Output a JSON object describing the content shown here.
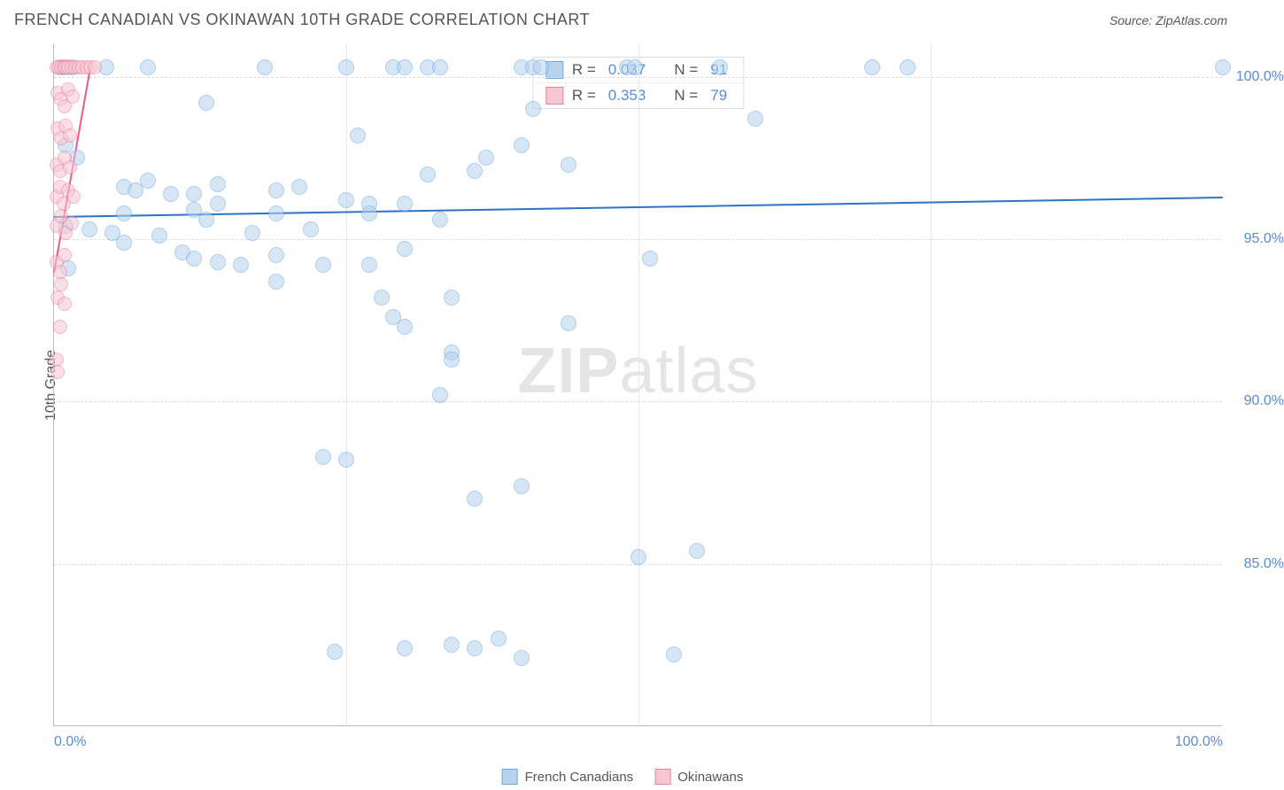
{
  "header": {
    "title": "FRENCH CANADIAN VS OKINAWAN 10TH GRADE CORRELATION CHART",
    "source": "Source: ZipAtlas.com"
  },
  "watermark": {
    "zip": "ZIP",
    "atlas": "atlas"
  },
  "chart": {
    "type": "scatter",
    "y_axis_title": "10th Grade",
    "xlim": [
      0,
      100
    ],
    "ylim": [
      80,
      101
    ],
    "xticks": [
      {
        "v": 0,
        "label": "0.0%",
        "align": "left"
      },
      {
        "v": 100,
        "label": "100.0%",
        "align": "right"
      }
    ],
    "xgrid": [
      25,
      50,
      75
    ],
    "yticks": [
      {
        "v": 85,
        "label": "85.0%"
      },
      {
        "v": 90,
        "label": "90.0%"
      },
      {
        "v": 95,
        "label": "95.0%"
      },
      {
        "v": 100,
        "label": "100.0%"
      }
    ],
    "background_color": "#ffffff",
    "grid_color": "#dcdcdc",
    "series": [
      {
        "name": "French Canadians",
        "fill": "#b7d2ee",
        "stroke": "#6faadf",
        "marker_radius": 9,
        "fill_opacity": 0.55,
        "trend": {
          "x1": 0,
          "y1": 95.7,
          "x2": 100,
          "y2": 96.3,
          "color": "#2f73c9",
          "width": 2
        },
        "points": [
          [
            0.5,
            100.3
          ],
          [
            1,
            100.3
          ],
          [
            1.5,
            100.3
          ],
          [
            4.5,
            100.3
          ],
          [
            8,
            100.3
          ],
          [
            18,
            100.3
          ],
          [
            25,
            100.3
          ],
          [
            29,
            100.3
          ],
          [
            30,
            100.3
          ],
          [
            32,
            100.3
          ],
          [
            33,
            100.3
          ],
          [
            40,
            100.3
          ],
          [
            41,
            100.3
          ],
          [
            41.7,
            100.3
          ],
          [
            49,
            100.3
          ],
          [
            49.7,
            100.3
          ],
          [
            57,
            100.3
          ],
          [
            70,
            100.3
          ],
          [
            73,
            100.3
          ],
          [
            100,
            100.3
          ],
          [
            13,
            99.2
          ],
          [
            41,
            99
          ],
          [
            40,
            97.9
          ],
          [
            60,
            98.7
          ],
          [
            26,
            98.2
          ],
          [
            1,
            97.9
          ],
          [
            2,
            97.5
          ],
          [
            6,
            96.6
          ],
          [
            7,
            96.5
          ],
          [
            8,
            96.8
          ],
          [
            10,
            96.4
          ],
          [
            12,
            96.4
          ],
          [
            14,
            96.1
          ],
          [
            14,
            96.7
          ],
          [
            19,
            96.5
          ],
          [
            21,
            96.6
          ],
          [
            25,
            96.2
          ],
          [
            27,
            96.1
          ],
          [
            30,
            96.1
          ],
          [
            32,
            97
          ],
          [
            36,
            97.1
          ],
          [
            37,
            97.5
          ],
          [
            44,
            97.3
          ],
          [
            1,
            95.4
          ],
          [
            3,
            95.3
          ],
          [
            5,
            95.2
          ],
          [
            6,
            95.8
          ],
          [
            9,
            95.1
          ],
          [
            12,
            95.9
          ],
          [
            13,
            95.6
          ],
          [
            17,
            95.2
          ],
          [
            19,
            95.8
          ],
          [
            22,
            95.3
          ],
          [
            27,
            95.8
          ],
          [
            33,
            95.6
          ],
          [
            1.2,
            94.1
          ],
          [
            6,
            94.9
          ],
          [
            11,
            94.6
          ],
          [
            12,
            94.4
          ],
          [
            14,
            94.3
          ],
          [
            16,
            94.2
          ],
          [
            19,
            94.5
          ],
          [
            23,
            94.2
          ],
          [
            27,
            94.2
          ],
          [
            30,
            94.7
          ],
          [
            51,
            94.4
          ],
          [
            19,
            93.7
          ],
          [
            29,
            92.6
          ],
          [
            28,
            93.2
          ],
          [
            34,
            93.2
          ],
          [
            30,
            92.3
          ],
          [
            34,
            91.5
          ],
          [
            44,
            92.4
          ],
          [
            34,
            91.3
          ],
          [
            33,
            90.2
          ],
          [
            25,
            88.2
          ],
          [
            23,
            88.3
          ],
          [
            40,
            87.4
          ],
          [
            36,
            87
          ],
          [
            50,
            85.2
          ],
          [
            55,
            85.4
          ],
          [
            38,
            82.7
          ],
          [
            36,
            82.4
          ],
          [
            34,
            82.5
          ],
          [
            30,
            82.4
          ],
          [
            24,
            82.3
          ],
          [
            40,
            82.1
          ],
          [
            53,
            82.2
          ]
        ]
      },
      {
        "name": "Okinawans",
        "fill": "#f7c8d2",
        "stroke": "#ec7e9c",
        "marker_radius": 8,
        "fill_opacity": 0.55,
        "trend": {
          "x1": 0,
          "y1": 94.0,
          "x2": 3.2,
          "y2": 100.5,
          "color": "#ec5b85",
          "width": 2
        },
        "points": [
          [
            0.2,
            100.3
          ],
          [
            0.4,
            100.3
          ],
          [
            0.6,
            100.3
          ],
          [
            0.8,
            100.3
          ],
          [
            1,
            100.3
          ],
          [
            1.2,
            100.3
          ],
          [
            1.5,
            100.3
          ],
          [
            1.8,
            100.3
          ],
          [
            2.1,
            100.3
          ],
          [
            2.4,
            100.3
          ],
          [
            2.8,
            100.3
          ],
          [
            3.1,
            100.3
          ],
          [
            3.5,
            100.3
          ],
          [
            0.3,
            99.5
          ],
          [
            0.6,
            99.3
          ],
          [
            0.9,
            99.1
          ],
          [
            1.2,
            99.6
          ],
          [
            1.6,
            99.4
          ],
          [
            0.3,
            98.4
          ],
          [
            0.6,
            98.1
          ],
          [
            1.0,
            98.5
          ],
          [
            1.4,
            98.2
          ],
          [
            0.2,
            97.3
          ],
          [
            0.5,
            97.1
          ],
          [
            0.9,
            97.5
          ],
          [
            1.4,
            97.2
          ],
          [
            0.2,
            96.3
          ],
          [
            0.5,
            96.6
          ],
          [
            0.8,
            96.1
          ],
          [
            1.2,
            96.5
          ],
          [
            1.7,
            96.3
          ],
          [
            0.2,
            95.4
          ],
          [
            0.6,
            95.7
          ],
          [
            1.0,
            95.2
          ],
          [
            1.5,
            95.5
          ],
          [
            0.2,
            94.3
          ],
          [
            0.5,
            94.0
          ],
          [
            0.9,
            94.5
          ],
          [
            0.6,
            93.6
          ],
          [
            0.3,
            93.2
          ],
          [
            0.9,
            93.0
          ],
          [
            0.5,
            92.3
          ],
          [
            0.2,
            91.3
          ],
          [
            0.3,
            90.9
          ]
        ]
      }
    ],
    "stats_box": {
      "rows": [
        {
          "swatch_fill": "#b7d2ee",
          "swatch_stroke": "#6faadf",
          "r_label": "R =",
          "r_value": "0.037",
          "n_label": "N =",
          "n_value": "91"
        },
        {
          "swatch_fill": "#f7c8d2",
          "swatch_stroke": "#ec7e9c",
          "r_label": "R =",
          "r_value": "0.353",
          "n_label": "N =",
          "n_value": "79"
        }
      ]
    },
    "bottom_legend": [
      {
        "fill": "#b7d2ee",
        "stroke": "#6faadf",
        "label": "French Canadians"
      },
      {
        "fill": "#f7c8d2",
        "stroke": "#ec7e9c",
        "label": "Okinawans"
      }
    ]
  }
}
